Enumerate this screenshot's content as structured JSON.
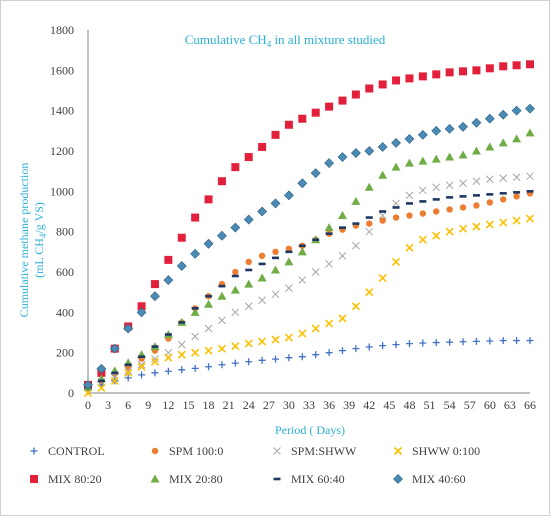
{
  "chart_data": {
    "type": "scatter",
    "title": "Cumulative CH",
    "title_sub": "4",
    "title_tail": " in all mixture studied",
    "xlabel": "Period ( Days)",
    "ylabel": "Cumulative methane  production",
    "ylabel2_a": "(mL CH",
    "ylabel2_sub": "4",
    "ylabel2_b": "/g VS)",
    "xlim": [
      0,
      66
    ],
    "ylim": [
      0,
      1800
    ],
    "x_ticks": [
      "0",
      "3",
      "6",
      "9",
      "12",
      "15",
      "18",
      "21",
      "24",
      "27",
      "30",
      "33",
      "36",
      "39",
      "42",
      "45",
      "48",
      "51",
      "54",
      "57",
      "60",
      "63",
      "66"
    ],
    "y_ticks": [
      "0",
      "200",
      "400",
      "600",
      "800",
      "1000",
      "1200",
      "1400",
      "1600",
      "1800"
    ],
    "grid": false,
    "legend_position": "bottom",
    "colors": {
      "title": "#2ab0d6",
      "axis": "#404040",
      "frame": "#d0d0d0"
    },
    "series": [
      {
        "name": "CONTROL",
        "marker": "plus",
        "color": "#4472c4",
        "x": [
          0,
          2,
          4,
          6,
          8,
          10,
          12,
          14,
          16,
          18,
          20,
          22,
          24,
          26,
          28,
          30,
          32,
          34,
          36,
          38,
          40,
          42,
          44,
          46,
          48,
          50,
          52,
          54,
          56,
          58,
          60,
          62,
          64,
          66
        ],
        "y": [
          20,
          40,
          60,
          75,
          90,
          100,
          108,
          115,
          122,
          130,
          140,
          148,
          155,
          162,
          168,
          175,
          180,
          190,
          200,
          210,
          220,
          228,
          235,
          240,
          245,
          248,
          250,
          252,
          254,
          256,
          258,
          260,
          260,
          260
        ]
      },
      {
        "name": "SPM 100:0",
        "marker": "circle",
        "color": "#ed7d31",
        "x": [
          0,
          2,
          4,
          6,
          8,
          10,
          12,
          14,
          16,
          18,
          20,
          22,
          24,
          26,
          28,
          30,
          32,
          34,
          36,
          38,
          40,
          42,
          44,
          46,
          48,
          50,
          52,
          54,
          56,
          58,
          60,
          62,
          64,
          66
        ],
        "y": [
          30,
          60,
          95,
          130,
          170,
          210,
          270,
          350,
          420,
          480,
          540,
          600,
          650,
          680,
          700,
          715,
          730,
          760,
          790,
          810,
          830,
          840,
          855,
          870,
          880,
          890,
          900,
          910,
          920,
          930,
          945,
          960,
          975,
          990
        ]
      },
      {
        "name": "SPM:SHWW",
        "marker": "cross",
        "color": "#a5a5a5",
        "x": [
          0,
          2,
          4,
          6,
          8,
          10,
          12,
          14,
          16,
          18,
          20,
          22,
          24,
          26,
          28,
          30,
          32,
          34,
          36,
          38,
          40,
          42,
          44,
          46,
          48,
          50,
          52,
          54,
          56,
          58,
          60,
          62,
          64,
          66
        ],
        "y": [
          30,
          55,
          80,
          110,
          140,
          170,
          200,
          240,
          280,
          320,
          360,
          400,
          430,
          460,
          490,
          520,
          560,
          600,
          640,
          680,
          730,
          800,
          880,
          940,
          980,
          1005,
          1020,
          1030,
          1040,
          1050,
          1060,
          1065,
          1070,
          1075
        ]
      },
      {
        "name": "SHWW 0:100",
        "marker": "x",
        "color": "#ffc000",
        "x": [
          0,
          2,
          4,
          6,
          8,
          10,
          12,
          14,
          16,
          18,
          20,
          22,
          24,
          26,
          28,
          30,
          32,
          34,
          36,
          38,
          40,
          42,
          44,
          46,
          48,
          50,
          52,
          54,
          56,
          58,
          60,
          62,
          64,
          66
        ],
        "y": [
          0,
          25,
          60,
          100,
          130,
          155,
          175,
          190,
          200,
          210,
          220,
          232,
          245,
          255,
          265,
          275,
          295,
          320,
          345,
          370,
          430,
          500,
          570,
          650,
          720,
          760,
          780,
          800,
          815,
          825,
          835,
          845,
          855,
          865
        ]
      },
      {
        "name": "MIX 80:20",
        "marker": "square",
        "color": "#e3203b",
        "x": [
          0,
          2,
          4,
          6,
          8,
          10,
          12,
          14,
          16,
          18,
          20,
          22,
          24,
          26,
          28,
          30,
          32,
          34,
          36,
          38,
          40,
          42,
          44,
          46,
          48,
          50,
          52,
          54,
          56,
          58,
          60,
          62,
          64,
          66
        ],
        "y": [
          40,
          100,
          220,
          330,
          430,
          540,
          660,
          770,
          870,
          960,
          1050,
          1120,
          1170,
          1220,
          1280,
          1330,
          1360,
          1390,
          1420,
          1450,
          1480,
          1510,
          1530,
          1550,
          1560,
          1570,
          1580,
          1590,
          1595,
          1600,
          1610,
          1620,
          1625,
          1630
        ]
      },
      {
        "name": "MIX 20:80",
        "marker": "triangle",
        "color": "#70ad47",
        "x": [
          0,
          2,
          4,
          6,
          8,
          10,
          12,
          14,
          16,
          18,
          20,
          22,
          24,
          26,
          28,
          30,
          32,
          34,
          36,
          38,
          40,
          42,
          44,
          46,
          48,
          50,
          52,
          54,
          56,
          58,
          60,
          62,
          64,
          66
        ],
        "y": [
          30,
          70,
          110,
          150,
          190,
          230,
          290,
          350,
          400,
          440,
          480,
          510,
          540,
          570,
          610,
          650,
          700,
          760,
          820,
          880,
          950,
          1020,
          1080,
          1120,
          1140,
          1150,
          1160,
          1170,
          1180,
          1200,
          1220,
          1240,
          1260,
          1290
        ]
      },
      {
        "name": "MIX 60:40",
        "marker": "dash",
        "color": "#1f3864",
        "x": [
          0,
          2,
          4,
          6,
          8,
          10,
          12,
          14,
          16,
          18,
          20,
          22,
          24,
          26,
          28,
          30,
          32,
          34,
          36,
          38,
          40,
          42,
          44,
          46,
          48,
          50,
          52,
          54,
          56,
          58,
          60,
          62,
          64,
          66
        ],
        "y": [
          30,
          60,
          100,
          140,
          180,
          230,
          290,
          350,
          420,
          480,
          530,
          580,
          610,
          640,
          670,
          700,
          730,
          760,
          790,
          820,
          840,
          870,
          900,
          920,
          940,
          950,
          960,
          970,
          975,
          980,
          985,
          990,
          995,
          1000
        ]
      },
      {
        "name": "MIX 40:60",
        "marker": "diamond",
        "color": "#4a8bb5",
        "x": [
          0,
          2,
          4,
          6,
          8,
          10,
          12,
          14,
          16,
          18,
          20,
          22,
          24,
          26,
          28,
          30,
          32,
          34,
          36,
          38,
          40,
          42,
          44,
          46,
          48,
          50,
          52,
          54,
          56,
          58,
          60,
          62,
          64,
          66
        ],
        "y": [
          40,
          120,
          220,
          320,
          400,
          480,
          560,
          630,
          690,
          740,
          780,
          820,
          860,
          900,
          940,
          980,
          1040,
          1090,
          1140,
          1170,
          1190,
          1200,
          1220,
          1240,
          1260,
          1280,
          1300,
          1310,
          1320,
          1340,
          1360,
          1380,
          1400,
          1410
        ]
      }
    ]
  }
}
